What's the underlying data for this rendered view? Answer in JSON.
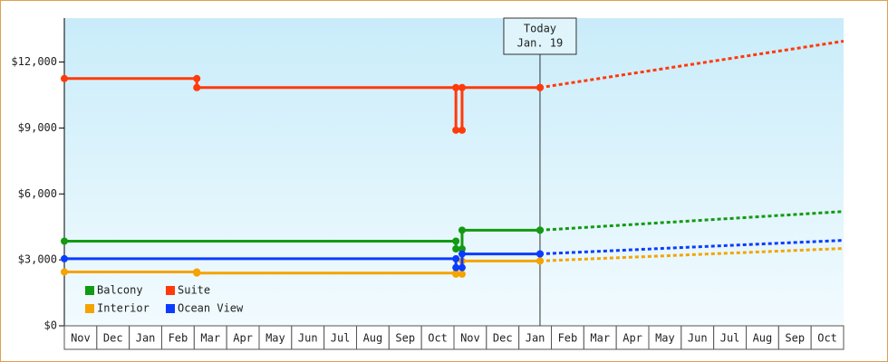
{
  "chart_data": {
    "type": "step-line",
    "categories": [
      "Nov",
      "Dec",
      "Jan",
      "Feb",
      "Mar",
      "Apr",
      "May",
      "Jun",
      "Jul",
      "Aug",
      "Sep",
      "Oct",
      "Nov",
      "Dec",
      "Jan",
      "Feb",
      "Mar",
      "Apr",
      "May",
      "Jun",
      "Jul",
      "Aug",
      "Sep",
      "Oct"
    ],
    "xlim": [
      0,
      24
    ],
    "ylim": [
      0,
      14000
    ],
    "yticks": [
      {
        "value": 0,
        "label": "$0"
      },
      {
        "value": 3000,
        "label": "$3,000"
      },
      {
        "value": 6000,
        "label": "$6,000"
      },
      {
        "value": 9000,
        "label": "$9,000"
      },
      {
        "value": 12000,
        "label": "$12,000"
      }
    ],
    "annotation": {
      "x": 14.65,
      "lines": [
        "Today",
        "Jan. 19"
      ]
    },
    "series": [
      {
        "name": "Balcony",
        "color": "#129a12",
        "x": [
          0,
          12.06,
          12.25,
          14.65
        ],
        "values": [
          3850,
          3500,
          4350,
          4350
        ],
        "forecast_x": [
          14.65,
          24
        ],
        "forecast_values": [
          4350,
          5200
        ]
      },
      {
        "name": "Suite",
        "color": "#ff3a0a",
        "x": [
          0,
          4.08,
          12.06,
          12.25,
          14.65
        ],
        "values": [
          11250,
          10840,
          8900,
          10840,
          10840
        ],
        "forecast_x": [
          14.65,
          24
        ],
        "forecast_values": [
          10840,
          12950
        ]
      },
      {
        "name": "Interior",
        "color": "#f5a300",
        "x": [
          0,
          4.08,
          12.06,
          12.25,
          14.65
        ],
        "values": [
          2450,
          2400,
          2350,
          2950,
          2950
        ],
        "forecast_x": [
          14.65,
          24
        ],
        "forecast_values": [
          2950,
          3520
        ]
      },
      {
        "name": "Ocean View",
        "color": "#0a3cff",
        "x": [
          0,
          12.06,
          12.25,
          14.65
        ],
        "values": [
          3050,
          2650,
          3270,
          3270
        ],
        "forecast_x": [
          14.65,
          24
        ],
        "forecast_values": [
          3270,
          3890
        ]
      }
    ]
  }
}
